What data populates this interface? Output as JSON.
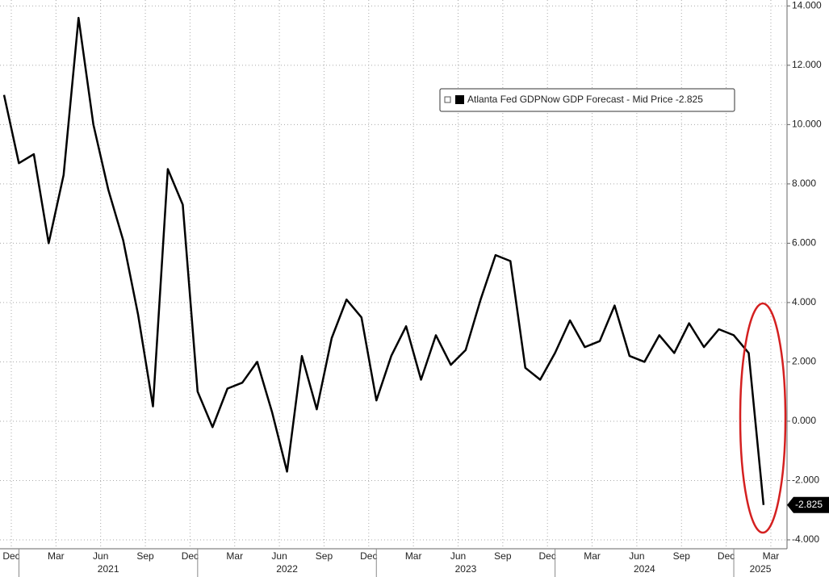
{
  "chart_data": {
    "type": "line",
    "x": [
      "2020-12",
      "2021-01",
      "2021-02",
      "2021-03",
      "2021-04",
      "2021-05",
      "2021-06",
      "2021-07",
      "2021-08",
      "2021-09",
      "2021-10",
      "2021-11",
      "2021-12",
      "2022-01",
      "2022-02",
      "2022-03",
      "2022-04",
      "2022-05",
      "2022-06",
      "2022-07",
      "2022-08",
      "2022-09",
      "2022-10",
      "2022-11",
      "2022-12",
      "2023-01",
      "2023-02",
      "2023-03",
      "2023-04",
      "2023-05",
      "2023-06",
      "2023-07",
      "2023-08",
      "2023-09",
      "2023-10",
      "2023-11",
      "2023-12",
      "2024-01",
      "2024-02",
      "2024-03",
      "2024-04",
      "2024-05",
      "2024-06",
      "2024-07",
      "2024-08",
      "2024-09",
      "2024-10",
      "2024-11",
      "2024-12",
      "2025-01",
      "2025-02",
      "2025-03"
    ],
    "series": [
      {
        "name": "Atlanta Fed GDPNow GDP Forecast - Mid Price",
        "color": "#000000",
        "values": [
          11,
          8.7,
          9,
          6,
          8.3,
          13.6,
          10,
          7.8,
          6.1,
          3.6,
          0.5,
          8.5,
          7.3,
          1.0,
          -0.2,
          1.1,
          1.3,
          2.0,
          0.3,
          -1.7,
          2.2,
          0.4,
          2.8,
          4.1,
          3.5,
          0.7,
          2.2,
          3.2,
          1.4,
          2.9,
          1.9,
          2.4,
          4.1,
          5.6,
          5.4,
          1.8,
          1.4,
          2.3,
          3.4,
          2.5,
          2.7,
          3.9,
          2.2,
          2.0,
          2.9,
          2.3,
          3.3,
          2.5,
          3.1,
          2.9,
          2.3,
          -2.825
        ]
      }
    ],
    "ylim": [
      -4.3,
      14.2
    ],
    "yticks": [
      {
        "value": 14,
        "label": "14.000"
      },
      {
        "value": 12,
        "label": "12.000"
      },
      {
        "value": 10,
        "label": "10.000"
      },
      {
        "value": 8,
        "label": "8.000"
      },
      {
        "value": 6,
        "label": "6.000"
      },
      {
        "value": 4,
        "label": "4.000"
      },
      {
        "value": 2,
        "label": "2.000"
      },
      {
        "value": 0,
        "label": "0.000"
      },
      {
        "value": -2,
        "label": "-2.000"
      },
      {
        "value": -4,
        "label": "-4.000"
      }
    ],
    "xticks": [
      {
        "value": "2020-12",
        "label": "Dec"
      },
      {
        "value": "2021-03",
        "label": "Mar"
      },
      {
        "value": "2021-06",
        "label": "Jun"
      },
      {
        "value": "2021-09",
        "label": "Sep"
      },
      {
        "value": "2021-12",
        "label": "Dec"
      },
      {
        "value": "2022-03",
        "label": "Mar"
      },
      {
        "value": "2022-06",
        "label": "Jun"
      },
      {
        "value": "2022-09",
        "label": "Sep"
      },
      {
        "value": "2022-12",
        "label": "Dec"
      },
      {
        "value": "2023-03",
        "label": "Mar"
      },
      {
        "value": "2023-06",
        "label": "Jun"
      },
      {
        "value": "2023-09",
        "label": "Sep"
      },
      {
        "value": "2023-12",
        "label": "Dec"
      },
      {
        "value": "2024-03",
        "label": "Mar"
      },
      {
        "value": "2024-06",
        "label": "Jun"
      },
      {
        "value": "2024-09",
        "label": "Sep"
      },
      {
        "value": "2024-12",
        "label": "Dec"
      },
      {
        "value": "2025-03",
        "label": "Mar"
      }
    ],
    "years": [
      2021,
      2022,
      2023,
      2024,
      2025
    ],
    "grid": true
  }
}
